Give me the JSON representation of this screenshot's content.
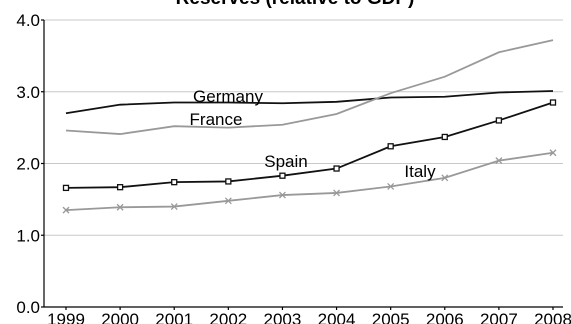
{
  "chart_data": {
    "type": "line",
    "title": "Reserves (relative to GDP)",
    "xlabel": "",
    "ylabel": "",
    "x": [
      "1999",
      "2000",
      "2001",
      "2002",
      "2003",
      "2004",
      "2005",
      "2006",
      "2007",
      "2008"
    ],
    "y_ticks": [
      "0.0",
      "1.0",
      "2.0",
      "3.0",
      "4.0"
    ],
    "ylim": [
      0,
      4
    ],
    "grid": true,
    "legend": "none",
    "series": [
      {
        "name": "Germany",
        "color": "#111111",
        "marker": "none",
        "values": [
          2.7,
          2.82,
          2.85,
          2.85,
          2.84,
          2.86,
          2.92,
          2.93,
          2.99,
          3.01
        ]
      },
      {
        "name": "France",
        "color": "#999999",
        "marker": "none",
        "values": [
          2.46,
          2.41,
          2.52,
          2.5,
          2.54,
          2.69,
          2.98,
          3.21,
          3.55,
          3.72
        ]
      },
      {
        "name": "Spain",
        "color": "#111111",
        "marker": "square",
        "values": [
          1.66,
          1.67,
          1.74,
          1.75,
          1.83,
          1.93,
          2.24,
          2.37,
          2.6,
          2.85
        ]
      },
      {
        "name": "Italy",
        "color": "#999999",
        "marker": "x",
        "values": [
          1.35,
          1.39,
          1.4,
          1.48,
          1.56,
          1.59,
          1.68,
          1.8,
          2.04,
          2.15
        ]
      }
    ]
  }
}
